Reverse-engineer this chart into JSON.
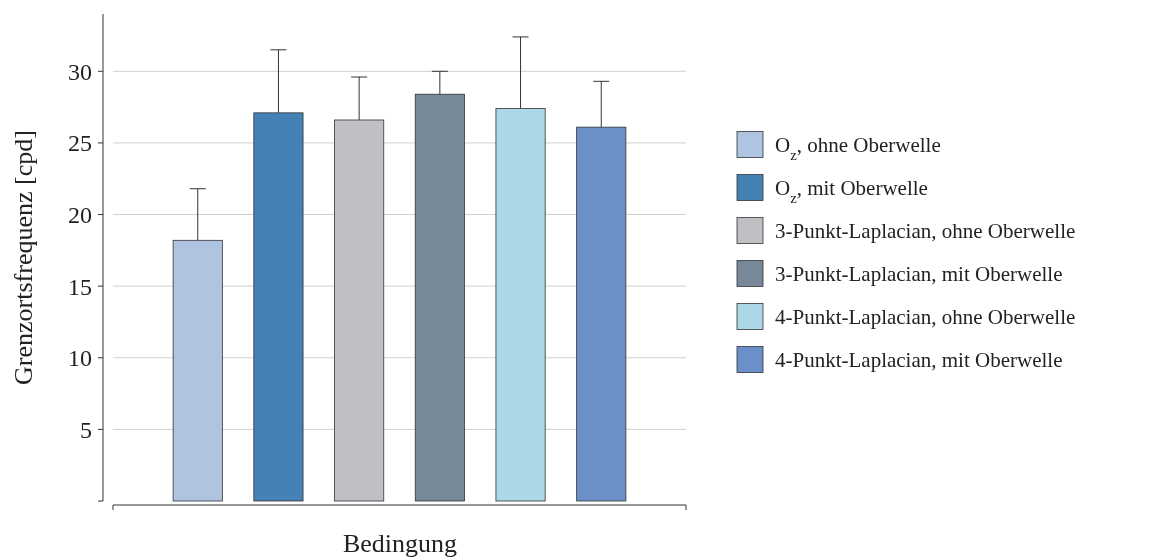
{
  "chart_data": {
    "type": "bar",
    "xlabel": "Bedingung",
    "ylabel": "Grenzortsfrequenz [cpd]",
    "categories": [
      null
    ],
    "series": [
      {
        "name": "O$_{z}$, ohne Oberwelle",
        "color": "#aec4e0",
        "values": [
          18.2
        ],
        "errors": [
          [
            18.2,
            21.8
          ]
        ]
      },
      {
        "name": "O$_{z}$, mit Oberwelle",
        "color": "#4581b5",
        "values": [
          27.1
        ],
        "errors": [
          [
            27.1,
            31.5
          ]
        ]
      },
      {
        "name": "3-Punkt-Laplacian, ohne Oberwelle",
        "color": "#bfc0c4",
        "values": [
          26.6
        ],
        "errors": [
          [
            26.6,
            29.6
          ]
        ]
      },
      {
        "name": "3-Punkt-Laplacian, mit Oberwelle",
        "color": "#778899",
        "values": [
          28.4
        ],
        "errors": [
          [
            28.4,
            30.0
          ]
        ]
      },
      {
        "name": "4-Punkt-Laplacian, ohne Oberwelle",
        "color": "#abd8e6",
        "values": [
          27.4
        ],
        "errors": [
          [
            27.4,
            32.4
          ]
        ]
      },
      {
        "name": "4-Punkt-Laplacian, mit Oberwelle",
        "color": "#6b8fc9",
        "values": [
          26.1
        ],
        "errors": [
          [
            26.1,
            29.3
          ]
        ]
      }
    ],
    "ylim": [
      0,
      34
    ],
    "yticks": [
      {
        "value": 0,
        "label": null
      },
      5,
      10,
      15,
      20,
      25,
      30
    ],
    "grid": "y",
    "legend": "right"
  }
}
